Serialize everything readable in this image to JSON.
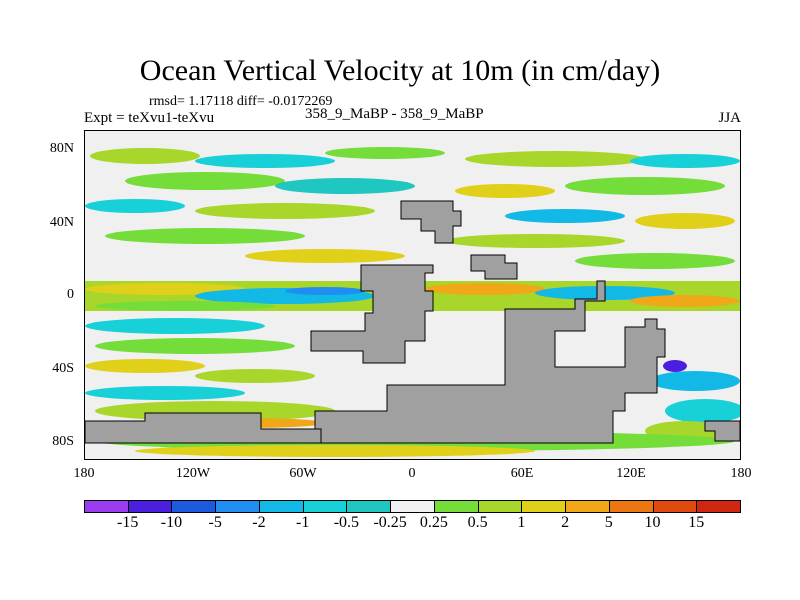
{
  "title": "Ocean Vertical Velocity at 10m (in cm/day)",
  "stats": "rmsd= 1.17118 diff= -0.0172269",
  "expt": "Expt = teXvu1-teXvu",
  "run": "358_9_MaBP - 358_9_MaBP",
  "season": "JJA",
  "lat_labels": [
    "80N",
    "40N",
    "0",
    "40S",
    "80S"
  ],
  "lon_labels": [
    "180",
    "120W",
    "60W",
    "0",
    "60E",
    "120E",
    "180"
  ],
  "colorbar": {
    "labels": [
      "-15",
      "-10",
      "-5",
      "-2",
      "-1",
      "-0.5",
      "-0.25",
      "0.25",
      "0.5",
      "1",
      "2",
      "5",
      "10",
      "15"
    ],
    "colors": [
      "#9b3cf0",
      "#4a1fe0",
      "#1c5be0",
      "#1f8ef0",
      "#12b8e6",
      "#18d0d8",
      "#20c6c0",
      "#f0f0f0",
      "#74dd3a",
      "#a8d62a",
      "#e0d01a",
      "#f0a818",
      "#ec7612",
      "#e04a10",
      "#d02810"
    ]
  },
  "land_color": "#a0a0a0"
}
